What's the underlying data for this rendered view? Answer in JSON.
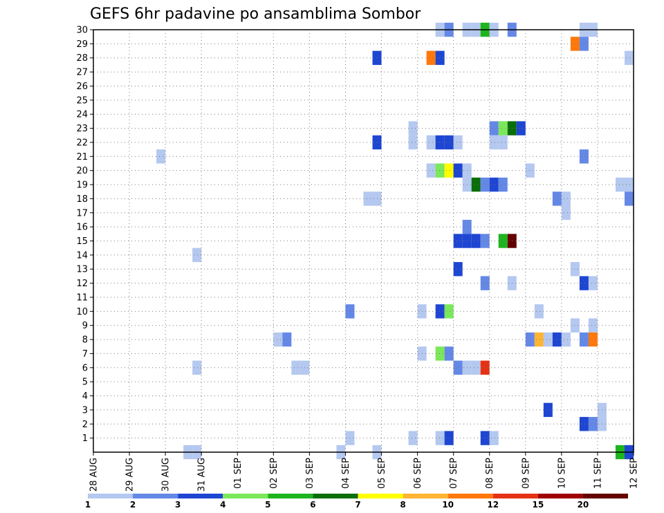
{
  "chart_data": {
    "type": "heatmap",
    "title": "GEFS 6hr padavine po ansamblima Sombor",
    "xlabel": "",
    "ylabel": "",
    "x_ticks": [
      "28 AUG",
      "29 AUG",
      "30 AUG",
      "31 AUG",
      "01 SEP",
      "02 SEP",
      "03 SEP",
      "04 SEP",
      "05 SEP",
      "06 SEP",
      "07 SEP",
      "08 SEP",
      "09 SEP",
      "10 SEP",
      "11 SEP",
      "12 SEP"
    ],
    "y_ticks": [
      "1",
      "2",
      "3",
      "4",
      "5",
      "6",
      "7",
      "8",
      "9",
      "10",
      "11",
      "12",
      "13",
      "14",
      "15",
      "16",
      "17",
      "18",
      "19",
      "20",
      "21",
      "22",
      "23",
      "24",
      "25",
      "26",
      "27",
      "28",
      "29",
      "30"
    ],
    "x_unit": "6-hour steps from 28 AUG 00Z",
    "xlim": [
      0,
      60
    ],
    "ylim": [
      0,
      30
    ],
    "grid": true,
    "legend": {
      "placement": "bottom",
      "labels": [
        "1",
        "2",
        "3",
        "4",
        "5",
        "6",
        "7",
        "8",
        "10",
        "12",
        "15",
        "20"
      ],
      "colors": [
        "#b4c8f0",
        "#6488e6",
        "#1e46d2",
        "#7ae85a",
        "#1eb41e",
        "#0a6e0a",
        "#ffff00",
        "#ffb432",
        "#ff780a",
        "#e63214",
        "#a00000",
        "#640000"
      ]
    },
    "cells": [
      {
        "x": 38.5,
        "y": 30,
        "level": 1
      },
      {
        "x": 39.5,
        "y": 30,
        "level": 2
      },
      {
        "x": 41.5,
        "y": 30,
        "level": 1
      },
      {
        "x": 42.5,
        "y": 30,
        "level": 1
      },
      {
        "x": 43.5,
        "y": 30,
        "level": 5
      },
      {
        "x": 44.5,
        "y": 30,
        "level": 1
      },
      {
        "x": 46.5,
        "y": 30,
        "level": 2
      },
      {
        "x": 54.5,
        "y": 30,
        "level": 1
      },
      {
        "x": 55.5,
        "y": 30,
        "level": 1
      },
      {
        "x": 53.5,
        "y": 29,
        "level": 9
      },
      {
        "x": 54.5,
        "y": 29,
        "level": 2
      },
      {
        "x": 31.5,
        "y": 28,
        "level": 3
      },
      {
        "x": 37.5,
        "y": 28,
        "level": 9
      },
      {
        "x": 38.5,
        "y": 28,
        "level": 3
      },
      {
        "x": 59.5,
        "y": 28,
        "level": 1
      },
      {
        "x": 35.5,
        "y": 23,
        "level": 1
      },
      {
        "x": 44.5,
        "y": 23,
        "level": 2
      },
      {
        "x": 45.5,
        "y": 23,
        "level": 4
      },
      {
        "x": 46.5,
        "y": 23,
        "level": 6
      },
      {
        "x": 47.5,
        "y": 23,
        "level": 3
      },
      {
        "x": 31.5,
        "y": 22,
        "level": 3
      },
      {
        "x": 35.5,
        "y": 22,
        "level": 1
      },
      {
        "x": 37.5,
        "y": 22,
        "level": 1
      },
      {
        "x": 38.5,
        "y": 22,
        "level": 3
      },
      {
        "x": 39.5,
        "y": 22,
        "level": 3
      },
      {
        "x": 40.5,
        "y": 22,
        "level": 1
      },
      {
        "x": 44.5,
        "y": 22,
        "level": 1
      },
      {
        "x": 45.5,
        "y": 22,
        "level": 1
      },
      {
        "x": 7.5,
        "y": 21,
        "level": 1
      },
      {
        "x": 54.5,
        "y": 21,
        "level": 2
      },
      {
        "x": 37.5,
        "y": 20,
        "level": 1
      },
      {
        "x": 38.5,
        "y": 20,
        "level": 4
      },
      {
        "x": 39.5,
        "y": 20,
        "level": 7
      },
      {
        "x": 40.5,
        "y": 20,
        "level": 3
      },
      {
        "x": 41.5,
        "y": 20,
        "level": 1
      },
      {
        "x": 48.5,
        "y": 20,
        "level": 1
      },
      {
        "x": 41.5,
        "y": 19,
        "level": 1
      },
      {
        "x": 42.5,
        "y": 19,
        "level": 6
      },
      {
        "x": 43.5,
        "y": 19,
        "level": 2
      },
      {
        "x": 44.5,
        "y": 19,
        "level": 3
      },
      {
        "x": 45.5,
        "y": 19,
        "level": 2
      },
      {
        "x": 58.5,
        "y": 19,
        "level": 1
      },
      {
        "x": 59.5,
        "y": 19,
        "level": 1
      },
      {
        "x": 30.5,
        "y": 18,
        "level": 1
      },
      {
        "x": 31.5,
        "y": 18,
        "level": 1
      },
      {
        "x": 51.5,
        "y": 18,
        "level": 2
      },
      {
        "x": 52.5,
        "y": 18,
        "level": 1
      },
      {
        "x": 59.5,
        "y": 18,
        "level": 2
      },
      {
        "x": 52.5,
        "y": 17,
        "level": 1
      },
      {
        "x": 41.5,
        "y": 16,
        "level": 2
      },
      {
        "x": 40.5,
        "y": 15,
        "level": 3
      },
      {
        "x": 41.5,
        "y": 15,
        "level": 3
      },
      {
        "x": 42.5,
        "y": 15,
        "level": 3
      },
      {
        "x": 43.5,
        "y": 15,
        "level": 2
      },
      {
        "x": 45.5,
        "y": 15,
        "level": 5
      },
      {
        "x": 46.5,
        "y": 15,
        "level": 12
      },
      {
        "x": 11.5,
        "y": 14,
        "level": 1
      },
      {
        "x": 40.5,
        "y": 13,
        "level": 3
      },
      {
        "x": 53.5,
        "y": 13,
        "level": 1
      },
      {
        "x": 43.5,
        "y": 12,
        "level": 2
      },
      {
        "x": 46.5,
        "y": 12,
        "level": 1
      },
      {
        "x": 54.5,
        "y": 12,
        "level": 3
      },
      {
        "x": 55.5,
        "y": 12,
        "level": 1
      },
      {
        "x": 28.5,
        "y": 10,
        "level": 2
      },
      {
        "x": 36.5,
        "y": 10,
        "level": 1
      },
      {
        "x": 38.5,
        "y": 10,
        "level": 3
      },
      {
        "x": 39.5,
        "y": 10,
        "level": 4
      },
      {
        "x": 49.5,
        "y": 10,
        "level": 1
      },
      {
        "x": 53.5,
        "y": 9,
        "level": 1
      },
      {
        "x": 55.5,
        "y": 9,
        "level": 1
      },
      {
        "x": 20.5,
        "y": 8,
        "level": 1
      },
      {
        "x": 21.5,
        "y": 8,
        "level": 2
      },
      {
        "x": 48.5,
        "y": 8,
        "level": 2
      },
      {
        "x": 49.5,
        "y": 8,
        "level": 8
      },
      {
        "x": 50.5,
        "y": 8,
        "level": 1
      },
      {
        "x": 51.5,
        "y": 8,
        "level": 3
      },
      {
        "x": 52.5,
        "y": 8,
        "level": 1
      },
      {
        "x": 54.5,
        "y": 8,
        "level": 2
      },
      {
        "x": 55.5,
        "y": 8,
        "level": 9
      },
      {
        "x": 36.5,
        "y": 7,
        "level": 1
      },
      {
        "x": 38.5,
        "y": 7,
        "level": 4
      },
      {
        "x": 39.5,
        "y": 7,
        "level": 2
      },
      {
        "x": 11.5,
        "y": 6,
        "level": 1
      },
      {
        "x": 22.5,
        "y": 6,
        "level": 1
      },
      {
        "x": 23.5,
        "y": 6,
        "level": 1
      },
      {
        "x": 40.5,
        "y": 6,
        "level": 2
      },
      {
        "x": 41.5,
        "y": 6,
        "level": 1
      },
      {
        "x": 42.5,
        "y": 6,
        "level": 1
      },
      {
        "x": 43.5,
        "y": 6,
        "level": 10
      },
      {
        "x": 50.5,
        "y": 3,
        "level": 3
      },
      {
        "x": 56.5,
        "y": 3,
        "level": 1
      },
      {
        "x": 54.5,
        "y": 2,
        "level": 3
      },
      {
        "x": 55.5,
        "y": 2,
        "level": 2
      },
      {
        "x": 56.5,
        "y": 2,
        "level": 1
      },
      {
        "x": 28.5,
        "y": 1,
        "level": 1
      },
      {
        "x": 35.5,
        "y": 1,
        "level": 1
      },
      {
        "x": 38.5,
        "y": 1,
        "level": 1
      },
      {
        "x": 39.5,
        "y": 1,
        "level": 3
      },
      {
        "x": 43.5,
        "y": 1,
        "level": 3
      },
      {
        "x": 44.5,
        "y": 1,
        "level": 1
      },
      {
        "x": 10.5,
        "y": 0,
        "level": 1
      },
      {
        "x": 11.5,
        "y": 0,
        "level": 1
      },
      {
        "x": 27.5,
        "y": 0,
        "level": 1
      },
      {
        "x": 31.5,
        "y": 0,
        "level": 1
      },
      {
        "x": 58.5,
        "y": 0,
        "level": 5
      },
      {
        "x": 59.5,
        "y": 0,
        "level": 3
      }
    ]
  }
}
